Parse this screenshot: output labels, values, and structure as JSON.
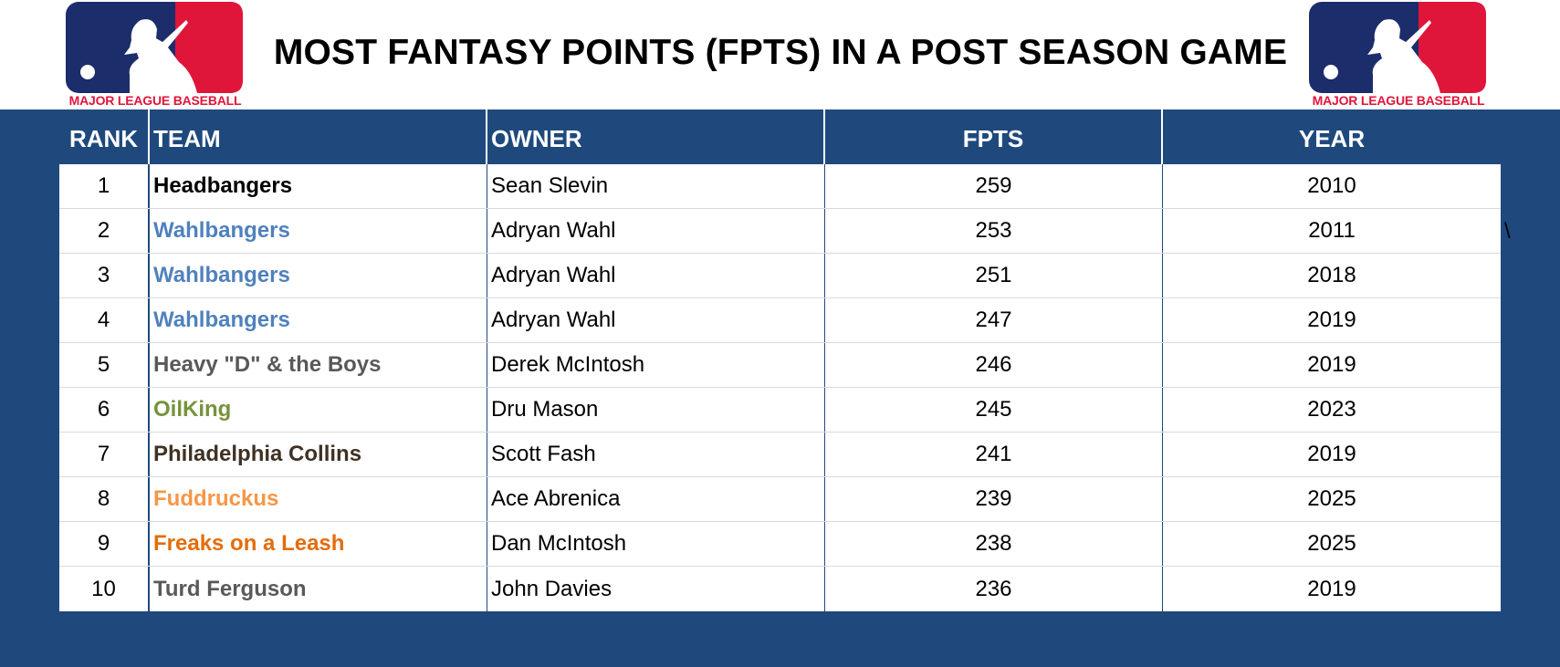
{
  "title": "MOST FANTASY POINTS (FPTS) IN A POST SEASON GAME",
  "logo": {
    "text": "MAJOR LEAGUE BASEBALL",
    "colors": {
      "blue": "#1b2d6b",
      "red": "#e0153a",
      "white": "#ffffff"
    }
  },
  "stray_mark": "\\",
  "colors": {
    "header_band": "#1f497d",
    "header_text": "#ffffff"
  },
  "table": {
    "columns": [
      "RANK",
      "TEAM",
      "OWNER",
      "FPTS",
      "YEAR"
    ],
    "rows": [
      {
        "rank": "1",
        "team": "Headbangers",
        "team_color": "#000000",
        "owner": "Sean Slevin",
        "fpts": "259",
        "year": "2010"
      },
      {
        "rank": "2",
        "team": "Wahlbangers",
        "team_color": "#4f81bd",
        "owner": "Adryan Wahl",
        "fpts": "253",
        "year": "2011"
      },
      {
        "rank": "3",
        "team": "Wahlbangers",
        "team_color": "#4f81bd",
        "owner": "Adryan Wahl",
        "fpts": "251",
        "year": "2018"
      },
      {
        "rank": "4",
        "team": "Wahlbangers",
        "team_color": "#4f81bd",
        "owner": "Adryan Wahl",
        "fpts": "247",
        "year": "2019"
      },
      {
        "rank": "5",
        "team": "Heavy \"D\" & the Boys",
        "team_color": "#595959",
        "owner": "Derek McIntosh",
        "fpts": "246",
        "year": "2019"
      },
      {
        "rank": "6",
        "team": "OilKing",
        "team_color": "#77933c",
        "owner": "Dru Mason",
        "fpts": "245",
        "year": "2023"
      },
      {
        "rank": "7",
        "team": "Philadelphia Collins",
        "team_color": "#3f3124",
        "owner": "Scott Fash",
        "fpts": "241",
        "year": "2019"
      },
      {
        "rank": "8",
        "team": "Fuddruckus",
        "team_color": "#f79646",
        "owner": "Ace Abrenica",
        "fpts": "239",
        "year": "2025"
      },
      {
        "rank": "9",
        "team": "Freaks on a Leash",
        "team_color": "#e46c0a",
        "owner": "Dan McIntosh",
        "fpts": "238",
        "year": "2025"
      },
      {
        "rank": "10",
        "team": "Turd Ferguson",
        "team_color": "#595959",
        "owner": "John Davies",
        "fpts": "236",
        "year": "2019"
      }
    ]
  }
}
